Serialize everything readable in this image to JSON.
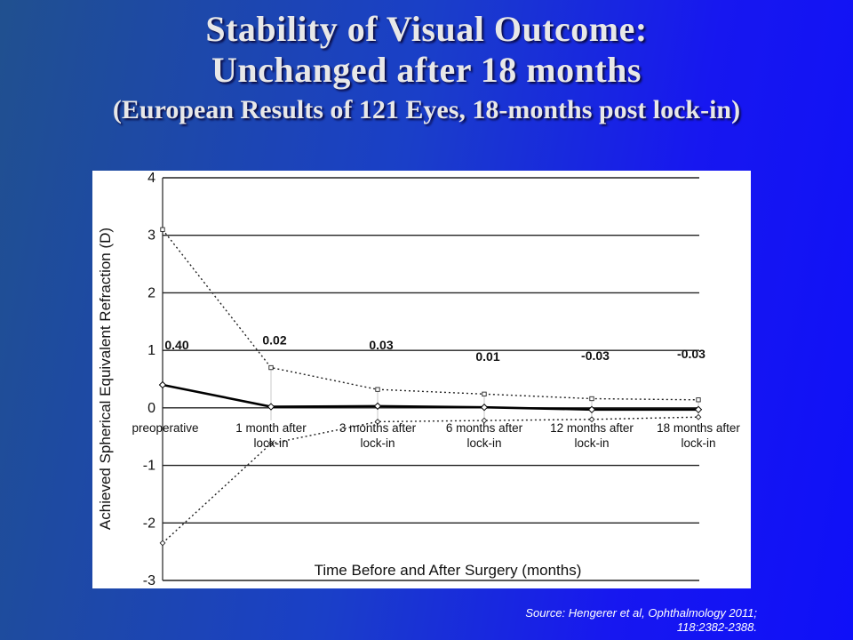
{
  "slide": {
    "title_line1": "Stability of Visual Outcome:",
    "title_line2": "Unchanged after 18 months",
    "title_line3": "(European Results of 121 Eyes, 18-months post lock-in)",
    "source_line1": "Source: Hengerer et al, Ophthalmology 2011;",
    "source_line2": "118:2382-2388."
  },
  "chart_data": {
    "type": "line",
    "title": "",
    "xlabel": "Time Before and After Surgery (months)",
    "ylabel": "Achieved Spherical Equivalent Refraction (D)",
    "ylim": [
      -3,
      4
    ],
    "yticks": [
      4,
      3,
      2,
      1,
      0,
      -1,
      -2,
      -3
    ],
    "categories": [
      [
        "preoperative"
      ],
      [
        "1 month after",
        "lock-in"
      ],
      [
        "3 months after",
        "lock-in"
      ],
      [
        "6 months after",
        "lock-in"
      ],
      [
        "12 months after",
        "lock-in"
      ],
      [
        "18 months after",
        "lock-in"
      ]
    ],
    "grid": true,
    "series": [
      {
        "style": "solid",
        "values": [
          0.4,
          0.02,
          0.03,
          0.01,
          -0.03,
          -0.03
        ]
      },
      {
        "style": "dotted-upper",
        "values": [
          3.1,
          0.7,
          0.32,
          0.24,
          0.16,
          0.14
        ]
      },
      {
        "style": "dotted-lower",
        "values": [
          -2.35,
          -0.62,
          -0.24,
          -0.22,
          -0.2,
          -0.16
        ]
      }
    ],
    "data_labels": [
      "0.40",
      "0.02",
      "0.03",
      "0.01",
      "-0.03",
      "-0.03"
    ]
  }
}
